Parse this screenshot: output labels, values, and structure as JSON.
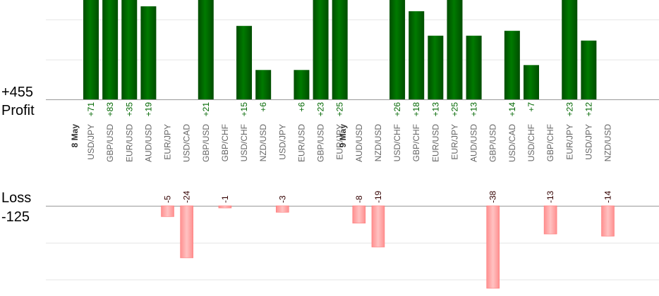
{
  "chart_data": {
    "type": "bar",
    "profit_panel": {
      "total_label": "+455",
      "label": "Profit"
    },
    "loss_panel": {
      "label": "Loss",
      "total_label": "-125"
    },
    "date_labels": [
      {
        "label": "8 May",
        "before_index": 0
      },
      {
        "label": "9 May",
        "before_index": 14
      }
    ],
    "categories": [
      "USD/JPY",
      "GBP/USD",
      "EUR/USD",
      "AUD/USD",
      "EUR/JPY",
      "USD/CAD",
      "GBP/USD",
      "GBP/CHF",
      "USD/CHF",
      "NZD/USD",
      "USD/JPY",
      "EUR/USD",
      "GBP/USD",
      "EUR/JPY",
      "AUD/USD",
      "NZD/USD",
      "USD/CHF",
      "GBP/CHF",
      "EUR/USD",
      "EUR/JPY",
      "AUD/USD",
      "GBP/USD",
      "USD/CAD",
      "USD/CHF",
      "GBP/CHF",
      "EUR/JPY",
      "USD/JPY",
      "NZD/USD"
    ],
    "values": [
      71,
      83,
      35,
      19,
      -5,
      -24,
      21,
      -1,
      15,
      6,
      -3,
      6,
      23,
      25,
      -8,
      -19,
      26,
      18,
      13,
      25,
      13,
      -38,
      14,
      7,
      -13,
      23,
      12,
      -14
    ],
    "value_labels": [
      "+71",
      "+83",
      "+35",
      "+19",
      "-5",
      "-24",
      "+21",
      "-1",
      "+15",
      "+6",
      "-3",
      "+6",
      "+23",
      "+25",
      "-8",
      "-19",
      "+26",
      "+18",
      "+13",
      "+25",
      "+13",
      "-38",
      "+14",
      "+7",
      "-13",
      "+23",
      "+12",
      "-14"
    ],
    "colors": {
      "profit": "#006600",
      "loss": "#ff9999",
      "loss_text": "#330000",
      "grid": "#e6e6e6",
      "axis": "#999999"
    }
  }
}
